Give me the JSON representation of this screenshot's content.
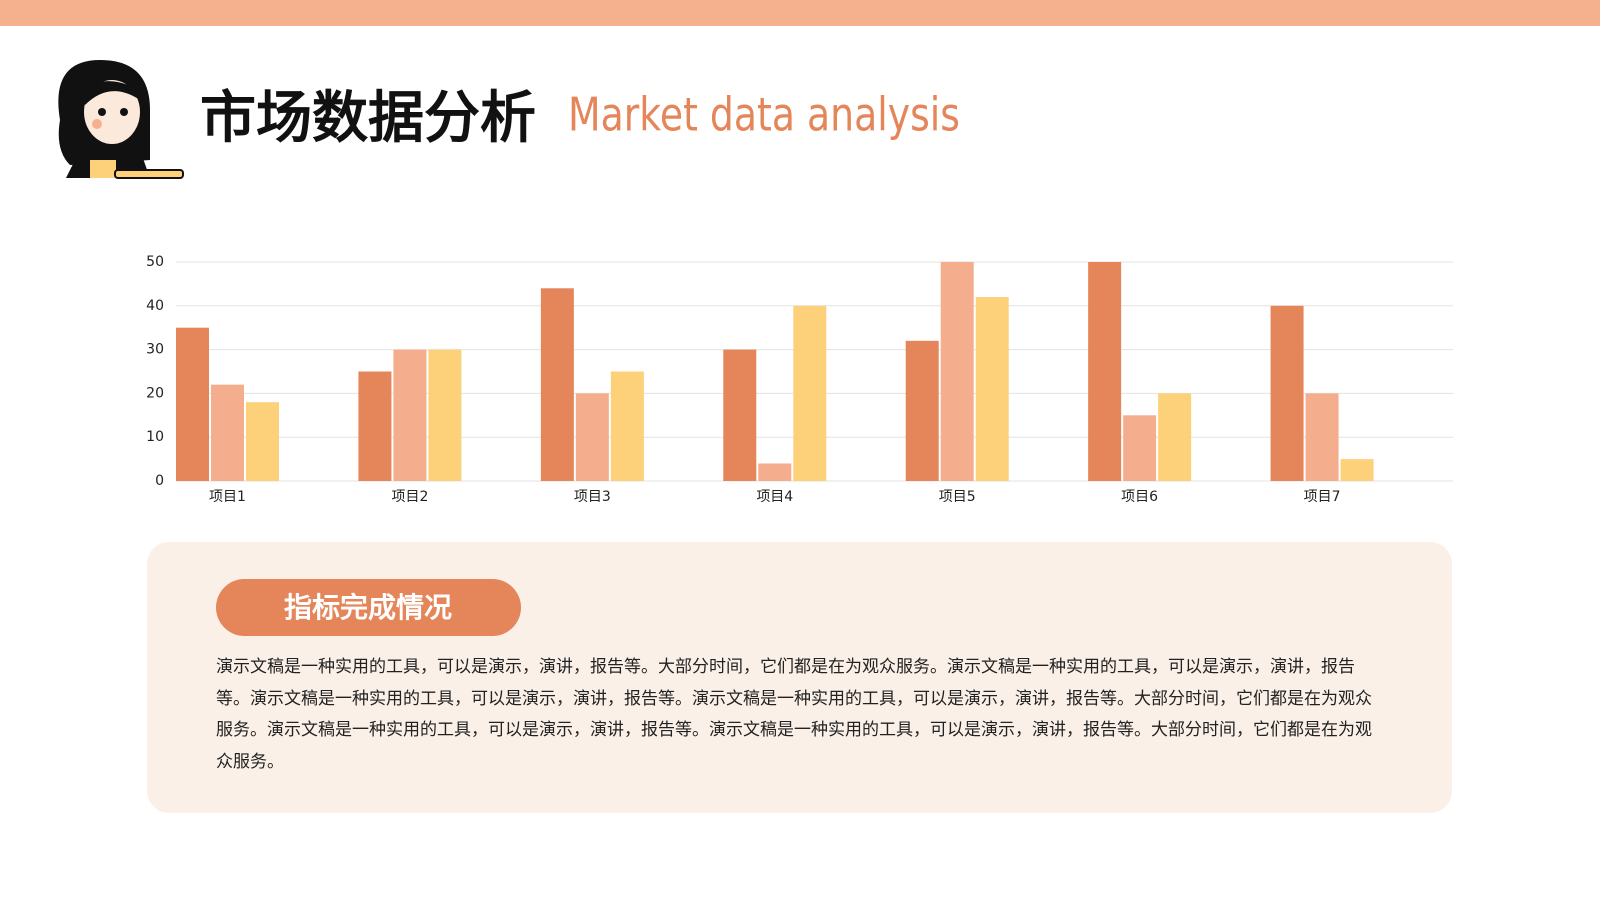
{
  "header": {
    "title": "市场数据分析",
    "subtitle": "Market data analysis"
  },
  "chart_data": {
    "type": "bar",
    "categories": [
      "项目1",
      "项目2",
      "项目3",
      "项目4",
      "项目5",
      "项目6",
      "项目7"
    ],
    "series": [
      {
        "color": "#e4855a",
        "values": [
          35,
          25,
          44,
          30,
          32,
          50,
          40
        ]
      },
      {
        "color": "#f4ae8e",
        "values": [
          22,
          30,
          20,
          4,
          50,
          15,
          20
        ]
      },
      {
        "color": "#fdd07a",
        "values": [
          18,
          30,
          25,
          40,
          42,
          20,
          5
        ]
      }
    ],
    "ylim": [
      0,
      50
    ],
    "yticks": [
      0,
      10,
      20,
      30,
      40,
      50
    ],
    "grid": true
  },
  "section": {
    "label": "指标完成情况",
    "text": "演示文稿是一种实用的工具，可以是演示，演讲，报告等。大部分时间，它们都是在为观众服务。演示文稿是一种实用的工具，可以是演示，演讲，报告等。演示文稿是一种实用的工具，可以是演示，演讲，报告等。演示文稿是一种实用的工具，可以是演示，演讲，报告等。大部分时间，它们都是在为观众服务。演示文稿是一种实用的工具，可以是演示，演讲，报告等。演示文稿是一种实用的工具，可以是演示，演讲，报告等。大部分时间，它们都是在为观众服务。"
  }
}
